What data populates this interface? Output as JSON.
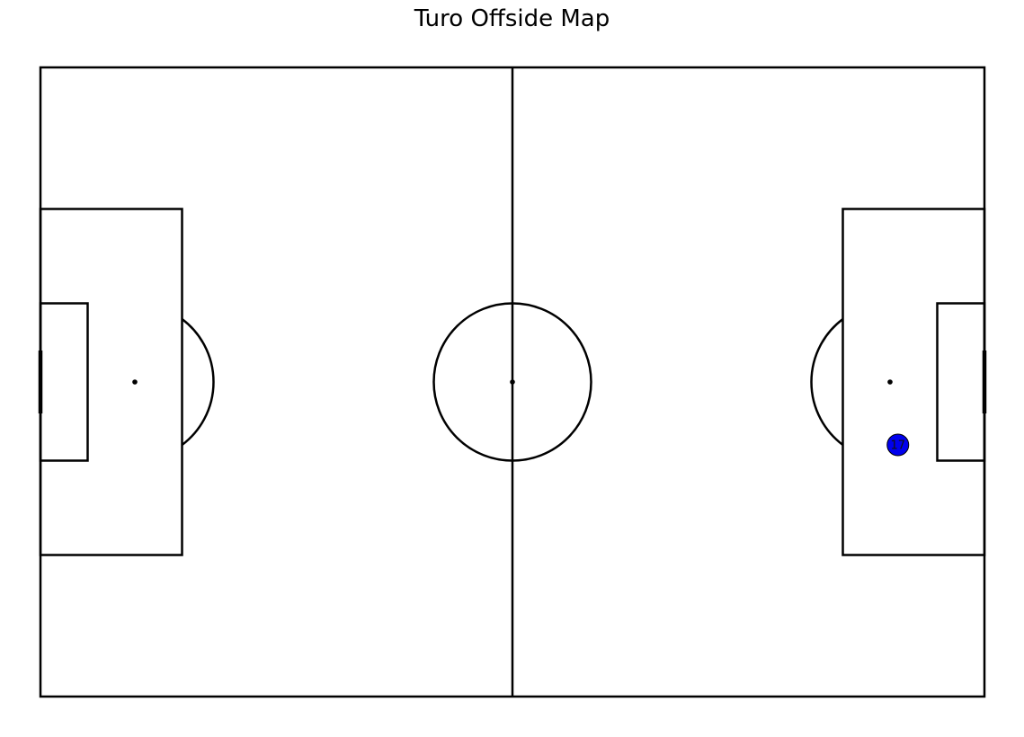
{
  "title": "Turo Offside Map",
  "colors": {
    "lines": "#000000",
    "background": "#ffffff",
    "marker_fill": "#0000ee"
  },
  "chart_data": {
    "type": "scatter",
    "title": "Turo Offside Map",
    "pitch": {
      "length": 120,
      "width": 80,
      "units": "yards",
      "grid": false,
      "legend": "none"
    },
    "xlim": [
      0,
      120
    ],
    "ylim": [
      0,
      80
    ],
    "points": [
      {
        "label": "17",
        "x": 109,
        "y": 48
      }
    ]
  }
}
